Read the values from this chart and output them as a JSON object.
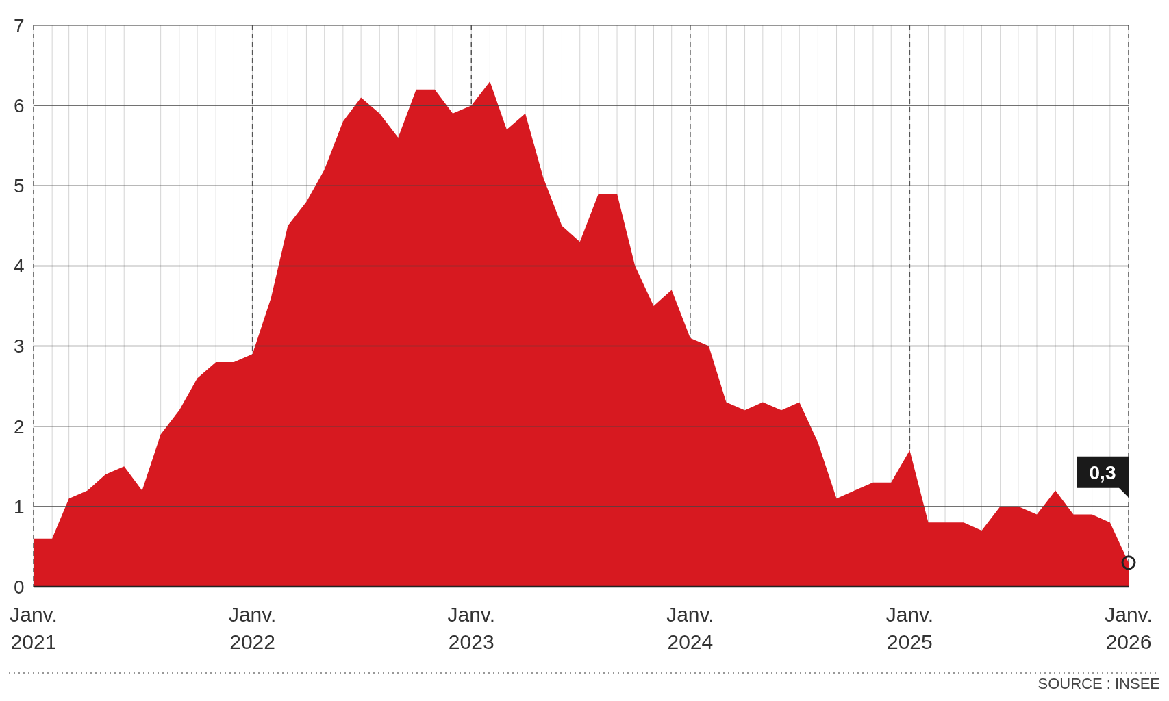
{
  "chart_data": {
    "type": "area",
    "x": [
      "2021-01",
      "2021-02",
      "2021-03",
      "2021-04",
      "2021-05",
      "2021-06",
      "2021-07",
      "2021-08",
      "2021-09",
      "2021-10",
      "2021-11",
      "2021-12",
      "2022-01",
      "2022-02",
      "2022-03",
      "2022-04",
      "2022-05",
      "2022-06",
      "2022-07",
      "2022-08",
      "2022-09",
      "2022-10",
      "2022-11",
      "2022-12",
      "2023-01",
      "2023-02",
      "2023-03",
      "2023-04",
      "2023-05",
      "2023-06",
      "2023-07",
      "2023-08",
      "2023-09",
      "2023-10",
      "2023-11",
      "2023-12",
      "2024-01",
      "2024-02",
      "2024-03",
      "2024-04",
      "2024-05",
      "2024-06",
      "2024-07",
      "2024-08",
      "2024-09",
      "2024-10",
      "2024-11",
      "2024-12",
      "2025-01",
      "2025-02",
      "2025-03",
      "2025-04",
      "2025-05",
      "2025-06",
      "2025-07",
      "2025-08",
      "2025-09",
      "2025-10",
      "2025-11",
      "2025-12",
      "2026-01"
    ],
    "values": [
      0.6,
      0.6,
      1.1,
      1.2,
      1.4,
      1.5,
      1.2,
      1.9,
      2.2,
      2.6,
      2.8,
      2.8,
      2.9,
      3.6,
      4.5,
      4.8,
      5.2,
      5.8,
      6.1,
      5.9,
      5.6,
      6.2,
      6.2,
      5.9,
      6.0,
      6.3,
      5.7,
      5.9,
      5.1,
      4.5,
      4.3,
      4.9,
      4.9,
      4.0,
      3.5,
      3.7,
      3.1,
      3.0,
      2.3,
      2.2,
      2.3,
      2.2,
      2.3,
      1.8,
      1.1,
      1.2,
      1.3,
      1.3,
      1.7,
      0.8,
      0.8,
      0.8,
      0.7,
      1.0,
      1.0,
      0.9,
      1.2,
      0.9,
      0.9,
      0.8,
      0.3
    ],
    "color": "#d71920",
    "xlim": [
      "2021-01",
      "2026-01"
    ],
    "xticks": [
      {
        "value": "2021-01",
        "label": "Janv.\n2021"
      },
      {
        "value": "2022-01",
        "label": "Janv.\n2022"
      },
      {
        "value": "2023-01",
        "label": "Janv.\n2023"
      },
      {
        "value": "2024-01",
        "label": "Janv.\n2024"
      },
      {
        "value": "2025-01",
        "label": "Janv.\n2025"
      },
      {
        "value": "2026-01",
        "label": "Janv.\n2026"
      }
    ],
    "ylim": [
      0,
      7
    ],
    "yticks": [
      0,
      1,
      2,
      3,
      4,
      5,
      6,
      7
    ],
    "grid": true,
    "annotations": [
      "0,3",
      "SOURCE : INSEE"
    ]
  }
}
